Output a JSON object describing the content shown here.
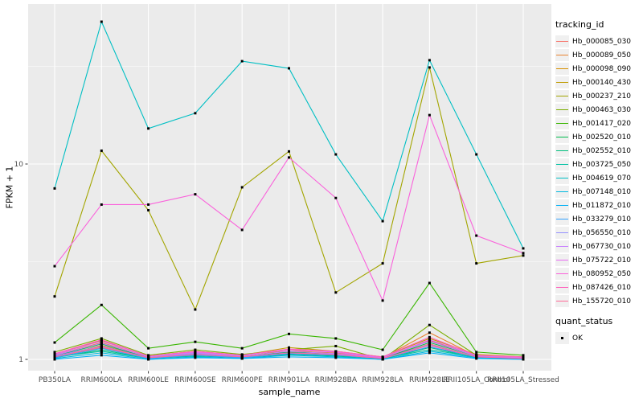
{
  "chart_data": {
    "type": "line",
    "title": "",
    "xlabel": "sample_name",
    "ylabel": "FPKM + 1",
    "y_scale": "log10",
    "y_ticks": [
      1,
      10
    ],
    "y_tick_labels": [
      "1",
      "10"
    ],
    "ylim": [
      0.87,
      66
    ],
    "grid": "on",
    "legend_position": "right",
    "legend_tracking_title": "tracking_id",
    "legend_quant_title": "quant_status",
    "legend_quant_value": "OK",
    "x_categories": [
      "PB350LA",
      "RRIM600LA",
      "RRIM600LE",
      "RRIM600SE",
      "RRIM600PE",
      "RRIM901LA",
      "RRIM928BA",
      "RRIM928LA",
      "RRIM928LE",
      "RRII105LA_Control",
      "RRII105LA_Stressed"
    ],
    "series": [
      {
        "name": "Hb_000085_030",
        "color": "#F8766D",
        "values": [
          1.02,
          1.15,
          1.01,
          1.05,
          1.02,
          1.08,
          1.05,
          1.01,
          1.2,
          1.03,
          1.01
        ]
      },
      {
        "name": "Hb_000089_050",
        "color": "#EA8331",
        "values": [
          1.05,
          1.22,
          1.03,
          1.08,
          1.04,
          1.1,
          1.08,
          1.02,
          1.37,
          1.04,
          1.03
        ]
      },
      {
        "name": "Hb_000098_090",
        "color": "#D89000",
        "values": [
          1.03,
          1.18,
          1.02,
          1.06,
          1.03,
          1.12,
          1.06,
          1.01,
          1.25,
          1.05,
          1.02
        ]
      },
      {
        "name": "Hb_000140_430",
        "color": "#C09B00",
        "values": [
          1.06,
          1.25,
          1.04,
          1.1,
          1.05,
          1.15,
          1.1,
          1.03,
          1.28,
          1.06,
          1.03
        ]
      },
      {
        "name": "Hb_000237_210",
        "color": "#A3A500",
        "values": [
          2.1,
          11.7,
          5.8,
          1.8,
          7.6,
          11.6,
          2.2,
          3.1,
          31.2,
          3.1,
          3.4
        ]
      },
      {
        "name": "Hb_000463_030",
        "color": "#7CAE00",
        "values": [
          1.09,
          1.28,
          1.05,
          1.12,
          1.06,
          1.12,
          1.17,
          1.0,
          1.5,
          1.05,
          1.02
        ]
      },
      {
        "name": "Hb_001417_020",
        "color": "#39B600",
        "values": [
          1.22,
          1.9,
          1.14,
          1.23,
          1.14,
          1.35,
          1.28,
          1.12,
          2.46,
          1.09,
          1.05
        ]
      },
      {
        "name": "Hb_002520_010",
        "color": "#00BB4E",
        "values": [
          1.04,
          1.2,
          1.02,
          1.07,
          1.03,
          1.09,
          1.07,
          1.01,
          1.22,
          1.04,
          1.02
        ]
      },
      {
        "name": "Hb_002552_010",
        "color": "#00BF7D",
        "values": [
          1.02,
          1.12,
          1.01,
          1.04,
          1.02,
          1.06,
          1.04,
          1.0,
          1.15,
          1.02,
          1.01
        ]
      },
      {
        "name": "Hb_003725_050",
        "color": "#00C1A3",
        "values": [
          1.03,
          1.1,
          1.01,
          1.05,
          1.02,
          1.07,
          1.05,
          1.01,
          1.12,
          1.03,
          1.01
        ]
      },
      {
        "name": "Hb_004619_070",
        "color": "#00BFC4",
        "values": [
          7.5,
          53.5,
          15.2,
          18.2,
          33.6,
          30.9,
          11.2,
          5.1,
          34.0,
          11.2,
          3.7
        ]
      },
      {
        "name": "Hb_007148_010",
        "color": "#00BAE0",
        "values": [
          1.01,
          1.08,
          1.0,
          1.03,
          1.01,
          1.05,
          1.03,
          1.0,
          1.1,
          1.02,
          1.01
        ]
      },
      {
        "name": "Hb_011872_010",
        "color": "#00B0F6",
        "values": [
          1.0,
          1.05,
          1.0,
          1.02,
          1.01,
          1.03,
          1.02,
          1.0,
          1.08,
          1.01,
          1.0
        ]
      },
      {
        "name": "Hb_033279_010",
        "color": "#35A2FF",
        "values": [
          1.02,
          1.14,
          1.01,
          1.05,
          1.02,
          1.07,
          1.05,
          1.01,
          1.16,
          1.03,
          1.01
        ]
      },
      {
        "name": "Hb_056550_010",
        "color": "#9590FF",
        "values": [
          1.04,
          1.17,
          1.02,
          1.07,
          1.03,
          1.08,
          1.06,
          1.01,
          1.19,
          1.03,
          1.02
        ]
      },
      {
        "name": "Hb_067730_010",
        "color": "#C77CFF",
        "values": [
          1.05,
          1.21,
          1.03,
          1.08,
          1.04,
          1.1,
          1.07,
          1.02,
          1.24,
          1.04,
          1.02
        ]
      },
      {
        "name": "Hb_075722_010",
        "color": "#E76BF3",
        "values": [
          1.06,
          1.24,
          1.04,
          1.09,
          1.05,
          1.12,
          1.09,
          1.02,
          1.26,
          1.05,
          1.02
        ]
      },
      {
        "name": "Hb_080952_050",
        "color": "#FA62DB",
        "values": [
          3.0,
          6.2,
          6.2,
          7.0,
          4.6,
          10.8,
          6.7,
          2.0,
          17.8,
          4.3,
          3.5
        ]
      },
      {
        "name": "Hb_087426_010",
        "color": "#FF62BC",
        "values": [
          1.07,
          1.26,
          1.04,
          1.1,
          1.05,
          1.13,
          1.1,
          1.03,
          1.3,
          1.05,
          1.03
        ]
      },
      {
        "name": "Hb_155720_010",
        "color": "#FF6A98",
        "values": [
          1.03,
          1.16,
          1.02,
          1.06,
          1.03,
          1.08,
          1.06,
          1.01,
          1.18,
          1.03,
          1.01
        ]
      }
    ]
  },
  "style_colors": {
    "panel_bg": "#EBEBEB",
    "gridline": "#FFFFFF",
    "axis_text": "#4D4D4D",
    "tick_mark": "#333333",
    "title_text": "#000000",
    "marker": "#000000",
    "legend_key_bg": "#F0F0F0"
  }
}
